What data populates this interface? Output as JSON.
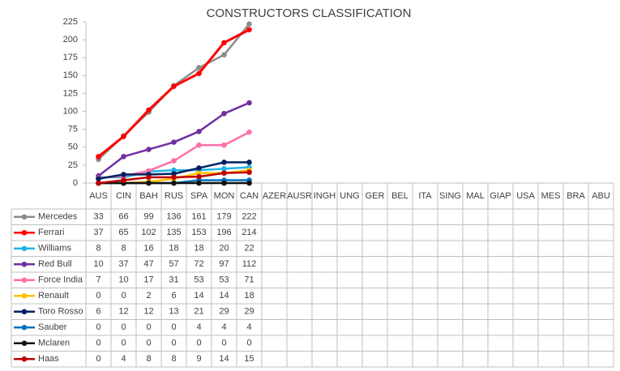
{
  "chart_data": {
    "type": "line",
    "title": "CONSTRUCTORS CLASSIFICATION",
    "categories": [
      "AUS",
      "CIN",
      "BAH",
      "RUS",
      "SPA",
      "MON",
      "CAN",
      "AZER",
      "AUSR",
      "INGH",
      "UNG",
      "GER",
      "BEL",
      "ITA",
      "SING",
      "MAL",
      "GIAP",
      "USA",
      "MES",
      "BRA",
      "ABU"
    ],
    "ylim": [
      0,
      225
    ],
    "yticks": [
      0,
      25,
      50,
      75,
      100,
      125,
      150,
      175,
      200,
      225
    ],
    "series": [
      {
        "name": "Mercedes",
        "color": "#8c8c8c",
        "values": [
          33,
          66,
          99,
          136,
          161,
          179,
          222,
          null,
          null,
          null,
          null,
          null,
          null,
          null,
          null,
          null,
          null,
          null,
          null,
          null,
          null
        ]
      },
      {
        "name": "Ferrari",
        "color": "#ff0000",
        "values": [
          37,
          65,
          102,
          135,
          153,
          196,
          214,
          null,
          null,
          null,
          null,
          null,
          null,
          null,
          null,
          null,
          null,
          null,
          null,
          null,
          null
        ]
      },
      {
        "name": "Williams",
        "color": "#1fb4e6",
        "values": [
          8,
          8,
          16,
          18,
          18,
          20,
          22,
          null,
          null,
          null,
          null,
          null,
          null,
          null,
          null,
          null,
          null,
          null,
          null,
          null,
          null
        ]
      },
      {
        "name": "Red Bull",
        "color": "#7030a0",
        "values": [
          10,
          37,
          47,
          57,
          72,
          97,
          112,
          null,
          null,
          null,
          null,
          null,
          null,
          null,
          null,
          null,
          null,
          null,
          null,
          null,
          null
        ]
      },
      {
        "name": "Force India",
        "color": "#ff6fa8",
        "values": [
          7,
          10,
          17,
          31,
          53,
          53,
          71,
          null,
          null,
          null,
          null,
          null,
          null,
          null,
          null,
          null,
          null,
          null,
          null,
          null,
          null
        ]
      },
      {
        "name": "Renault",
        "color": "#ffc000",
        "values": [
          0,
          0,
          2,
          6,
          14,
          14,
          18,
          null,
          null,
          null,
          null,
          null,
          null,
          null,
          null,
          null,
          null,
          null,
          null,
          null,
          null
        ]
      },
      {
        "name": "Toro Rosso",
        "color": "#002060",
        "values": [
          6,
          12,
          12,
          13,
          21,
          29,
          29,
          null,
          null,
          null,
          null,
          null,
          null,
          null,
          null,
          null,
          null,
          null,
          null,
          null,
          null
        ]
      },
      {
        "name": "Sauber",
        "color": "#0070c0",
        "values": [
          0,
          0,
          0,
          0,
          4,
          4,
          4,
          null,
          null,
          null,
          null,
          null,
          null,
          null,
          null,
          null,
          null,
          null,
          null,
          null,
          null
        ]
      },
      {
        "name": "Mclaren",
        "color": "#111111",
        "values": [
          0,
          0,
          0,
          0,
          0,
          0,
          0,
          null,
          null,
          null,
          null,
          null,
          null,
          null,
          null,
          null,
          null,
          null,
          null,
          null,
          null
        ]
      },
      {
        "name": "Haas",
        "color": "#c00000",
        "values": [
          0,
          4,
          8,
          8,
          9,
          14,
          15,
          null,
          null,
          null,
          null,
          null,
          null,
          null,
          null,
          null,
          null,
          null,
          null,
          null,
          null
        ]
      }
    ]
  }
}
